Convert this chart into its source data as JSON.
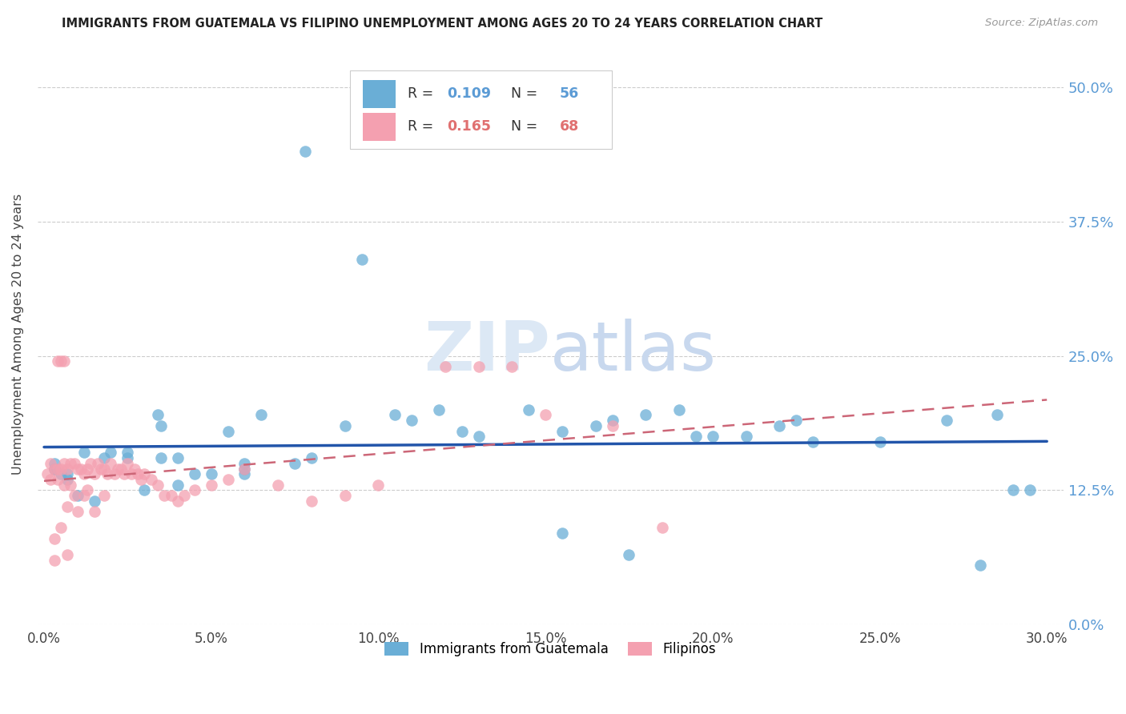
{
  "title": "IMMIGRANTS FROM GUATEMALA VS FILIPINO UNEMPLOYMENT AMONG AGES 20 TO 24 YEARS CORRELATION CHART",
  "source": "Source: ZipAtlas.com",
  "ylabel": "Unemployment Among Ages 20 to 24 years",
  "ytick_labels": [
    "0.0%",
    "12.5%",
    "25.0%",
    "37.5%",
    "50.0%"
  ],
  "ytick_values": [
    0.0,
    0.125,
    0.25,
    0.375,
    0.5
  ],
  "xtick_values": [
    0.0,
    0.05,
    0.1,
    0.15,
    0.2,
    0.25,
    0.3
  ],
  "xtick_labels": [
    "0.0%",
    "5.0%",
    "10.0%",
    "15.0%",
    "20.0%",
    "25.0%",
    "30.0%"
  ],
  "xlim": [
    -0.002,
    0.305
  ],
  "ylim": [
    0.0,
    0.54
  ],
  "legend_label1": "Immigrants from Guatemala",
  "legend_label2": "Filipinos",
  "R1": 0.109,
  "N1": 56,
  "R2": 0.165,
  "N2": 68,
  "color_blue": "#6aaed6",
  "color_pink": "#f4a0b0",
  "color_blue_line": "#2255aa",
  "color_pink_line": "#cc6677",
  "watermark_color": "#dce8f5",
  "blue_dots_x": [
    0.003,
    0.003,
    0.003,
    0.005,
    0.007,
    0.007,
    0.01,
    0.012,
    0.015,
    0.018,
    0.02,
    0.025,
    0.025,
    0.03,
    0.034,
    0.035,
    0.035,
    0.04,
    0.04,
    0.045,
    0.05,
    0.055,
    0.06,
    0.06,
    0.06,
    0.065,
    0.075,
    0.078,
    0.08,
    0.09,
    0.095,
    0.105,
    0.11,
    0.118,
    0.125,
    0.13,
    0.145,
    0.155,
    0.155,
    0.165,
    0.17,
    0.175,
    0.18,
    0.19,
    0.195,
    0.2,
    0.21,
    0.22,
    0.225,
    0.23,
    0.25,
    0.27,
    0.28,
    0.285,
    0.29,
    0.295
  ],
  "blue_dots_y": [
    0.145,
    0.145,
    0.15,
    0.14,
    0.14,
    0.135,
    0.12,
    0.16,
    0.115,
    0.155,
    0.16,
    0.155,
    0.16,
    0.125,
    0.195,
    0.155,
    0.185,
    0.155,
    0.13,
    0.14,
    0.14,
    0.18,
    0.14,
    0.145,
    0.15,
    0.195,
    0.15,
    0.44,
    0.155,
    0.185,
    0.34,
    0.195,
    0.19,
    0.2,
    0.18,
    0.175,
    0.2,
    0.085,
    0.18,
    0.185,
    0.19,
    0.065,
    0.195,
    0.2,
    0.175,
    0.175,
    0.175,
    0.185,
    0.19,
    0.17,
    0.17,
    0.19,
    0.055,
    0.195,
    0.125,
    0.125
  ],
  "pink_dots_x": [
    0.001,
    0.002,
    0.002,
    0.003,
    0.003,
    0.004,
    0.004,
    0.005,
    0.005,
    0.006,
    0.006,
    0.007,
    0.007,
    0.008,
    0.008,
    0.009,
    0.009,
    0.01,
    0.01,
    0.011,
    0.012,
    0.012,
    0.013,
    0.013,
    0.014,
    0.015,
    0.015,
    0.016,
    0.017,
    0.018,
    0.018,
    0.019,
    0.02,
    0.021,
    0.022,
    0.023,
    0.024,
    0.025,
    0.026,
    0.027,
    0.028,
    0.029,
    0.03,
    0.032,
    0.034,
    0.036,
    0.038,
    0.04,
    0.042,
    0.045,
    0.05,
    0.055,
    0.06,
    0.07,
    0.08,
    0.09,
    0.1,
    0.12,
    0.13,
    0.14,
    0.15,
    0.17,
    0.185,
    0.004,
    0.006,
    0.003,
    0.005,
    0.007
  ],
  "pink_dots_y": [
    0.14,
    0.15,
    0.135,
    0.145,
    0.08,
    0.145,
    0.135,
    0.145,
    0.09,
    0.15,
    0.13,
    0.145,
    0.11,
    0.15,
    0.13,
    0.15,
    0.12,
    0.145,
    0.105,
    0.145,
    0.14,
    0.12,
    0.145,
    0.125,
    0.15,
    0.14,
    0.105,
    0.15,
    0.145,
    0.145,
    0.12,
    0.14,
    0.15,
    0.14,
    0.145,
    0.145,
    0.14,
    0.15,
    0.14,
    0.145,
    0.14,
    0.135,
    0.14,
    0.135,
    0.13,
    0.12,
    0.12,
    0.115,
    0.12,
    0.125,
    0.13,
    0.135,
    0.145,
    0.13,
    0.115,
    0.12,
    0.13,
    0.24,
    0.24,
    0.24,
    0.195,
    0.185,
    0.09,
    0.245,
    0.245,
    0.06,
    0.245,
    0.065
  ]
}
